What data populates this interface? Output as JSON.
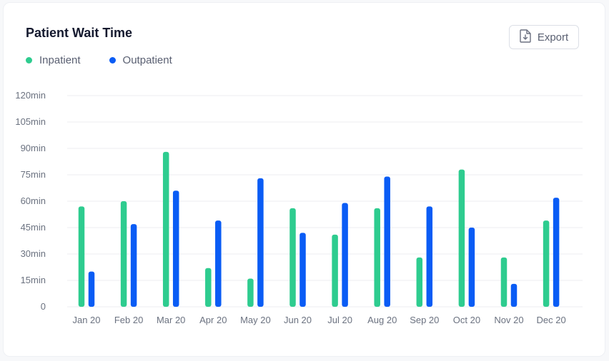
{
  "card": {
    "title": "Patient Wait Time",
    "export_label": "Export"
  },
  "colors": {
    "inpatient": "#2ecc8f",
    "outpatient": "#0a5cf5",
    "grid": "#eceef2",
    "tick_text": "#6b7280"
  },
  "chart_data": {
    "type": "bar",
    "title": "Patient Wait Time",
    "categories": [
      "Jan 20",
      "Feb 20",
      "Mar 20",
      "Apr 20",
      "May 20",
      "Jun 20",
      "Jul 20",
      "Aug 20",
      "Sep 20",
      "Oct 20",
      "Nov 20",
      "Dec 20"
    ],
    "series": [
      {
        "name": "Inpatient",
        "values": [
          57,
          60,
          88,
          22,
          16,
          56,
          41,
          56,
          28,
          78,
          28,
          49
        ]
      },
      {
        "name": "Outpatient",
        "values": [
          20,
          47,
          66,
          49,
          73,
          42,
          59,
          74,
          57,
          45,
          13,
          62
        ]
      }
    ],
    "yticks": [
      "0",
      "15min",
      "30min",
      "45min",
      "60min",
      "75min",
      "90min",
      "105min",
      "120min"
    ],
    "ylim": [
      0,
      120
    ],
    "grid": true,
    "legend_position": "top-left"
  }
}
